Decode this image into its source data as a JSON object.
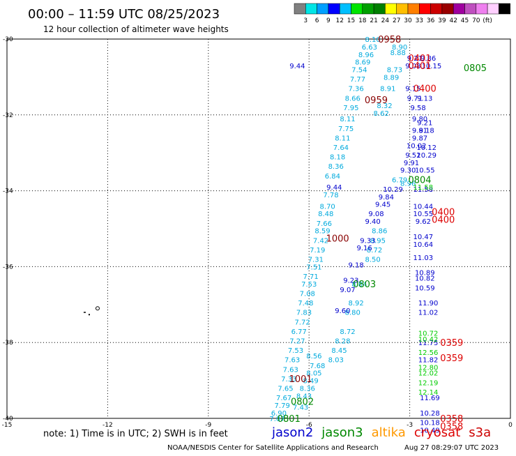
{
  "header": {
    "title": "00:00 – 11:59 UTC 08/25/2023",
    "subtitle": "12 hour collection of altimeter wave heights"
  },
  "colorbar": {
    "colors": [
      "#808080",
      "#00e5e5",
      "#009fff",
      "#0000ff",
      "#00bfff",
      "#00e500",
      "#009f00",
      "#007f00",
      "#ffff00",
      "#ffbf00",
      "#ff7f00",
      "#ff0000",
      "#cc0000",
      "#990000",
      "#9f009f",
      "#bf4fbf",
      "#ef7fef",
      "#ffcfff",
      "#000000"
    ],
    "labels": [
      "3",
      "6",
      "9",
      "12",
      "15",
      "18",
      "21",
      "24",
      "27",
      "30",
      "33",
      "36",
      "39",
      "42",
      "45",
      "70",
      "(ft)"
    ]
  },
  "footer": {
    "note": "note: 1) Time is in UTC; 2) SWH is in feet",
    "credit": "NOAA/NESDIS Center for Satellite Applications and Research",
    "timestamp": "Aug 27 08:29:07 UTC 2023"
  },
  "legend": [
    {
      "label": "jason2",
      "color": "#0000cc"
    },
    {
      "label": "jason3",
      "color": "#008800"
    },
    {
      "label": "altika",
      "color": "#ff9900"
    },
    {
      "label": "cryosat",
      "color": "#dd0000"
    },
    {
      "label": "s3a",
      "color": "#cc0000"
    }
  ],
  "chart_data": {
    "type": "scatter",
    "title": "00:00 – 11:59 UTC 08/25/2023",
    "xlim": [
      -15,
      0
    ],
    "ylim": [
      -40,
      -30
    ],
    "x_ticks": [
      -15,
      -12,
      -9,
      -6,
      -3,
      0
    ],
    "x_tick_labels": [
      "-15",
      "-12",
      "-9",
      "-6",
      "-3",
      "0"
    ],
    "y_ticks": [
      -30,
      -32,
      -34,
      -36,
      -38,
      -40
    ],
    "y_tick_labels": [
      "-30",
      "-32",
      "-34",
      "-36",
      "-38",
      "-40"
    ],
    "grid": true,
    "land": [
      {
        "x": -12.3,
        "y": -37.1
      }
    ],
    "series": [
      {
        "color": "#00aadd",
        "points": [
          {
            "x": -4.1,
            "y": -30.0,
            "label": "8.10"
          },
          {
            "x": -4.2,
            "y": -30.2,
            "label": "6.63"
          },
          {
            "x": -4.3,
            "y": -30.4,
            "label": "8.96"
          },
          {
            "x": -4.4,
            "y": -30.6,
            "label": "8.69"
          },
          {
            "x": -4.5,
            "y": -30.8,
            "label": "7.54"
          },
          {
            "x": -4.55,
            "y": -31.05,
            "label": "7.77"
          },
          {
            "x": -4.6,
            "y": -31.3,
            "label": "7.36"
          },
          {
            "x": -4.7,
            "y": -31.55,
            "label": "8.66"
          },
          {
            "x": -4.75,
            "y": -31.8,
            "label": "7.95"
          },
          {
            "x": -4.85,
            "y": -32.1,
            "label": "8.11"
          },
          {
            "x": -4.9,
            "y": -32.35,
            "label": "7.75"
          },
          {
            "x": -5.0,
            "y": -32.6,
            "label": "8.11"
          },
          {
            "x": -5.05,
            "y": -32.85,
            "label": "7.64"
          },
          {
            "x": -5.15,
            "y": -33.1,
            "label": "8.18"
          },
          {
            "x": -5.2,
            "y": -33.35,
            "label": "8.36"
          },
          {
            "x": -5.3,
            "y": -33.6,
            "label": "6.84"
          },
          {
            "x": -5.35,
            "y": -34.1,
            "label": "7.78"
          },
          {
            "x": -5.45,
            "y": -34.4,
            "label": "8.70"
          },
          {
            "x": -5.5,
            "y": -34.6,
            "label": "8.48"
          },
          {
            "x": -5.55,
            "y": -34.85,
            "label": "7.66"
          },
          {
            "x": -5.6,
            "y": -35.05,
            "label": "8.59"
          },
          {
            "x": -5.65,
            "y": -35.3,
            "label": "7.42"
          },
          {
            "x": -5.75,
            "y": -35.55,
            "label": "7.19"
          },
          {
            "x": -5.8,
            "y": -35.8,
            "label": "7.31"
          },
          {
            "x": -5.85,
            "y": -36.0,
            "label": "7.51"
          },
          {
            "x": -5.95,
            "y": -36.25,
            "label": "7.71"
          },
          {
            "x": -6.0,
            "y": -36.45,
            "label": "7.53"
          },
          {
            "x": -6.05,
            "y": -36.7,
            "label": "7.08"
          },
          {
            "x": -6.1,
            "y": -36.95,
            "label": "7.48"
          },
          {
            "x": -6.15,
            "y": -37.2,
            "label": "7.83"
          },
          {
            "x": -6.2,
            "y": -37.45,
            "label": "7.72"
          },
          {
            "x": -6.3,
            "y": -37.7,
            "label": "6.77"
          },
          {
            "x": -6.35,
            "y": -37.95,
            "label": "7.27"
          },
          {
            "x": -6.4,
            "y": -38.2,
            "label": "7.53"
          },
          {
            "x": -6.5,
            "y": -38.45,
            "label": "7.63"
          },
          {
            "x": -6.55,
            "y": -38.7,
            "label": "7.63"
          },
          {
            "x": -6.6,
            "y": -38.95,
            "label": "7.33"
          },
          {
            "x": -6.7,
            "y": -39.2,
            "label": "7.65"
          },
          {
            "x": -6.75,
            "y": -39.45,
            "label": "7.67"
          },
          {
            "x": -6.8,
            "y": -39.65,
            "label": "7.79"
          },
          {
            "x": -6.9,
            "y": -39.85,
            "label": "6.90"
          },
          {
            "x": -6.95,
            "y": -40.0,
            "label": "7.07"
          },
          {
            "x": -3.3,
            "y": -30.2,
            "label": "8.90"
          },
          {
            "x": -3.35,
            "y": -30.35,
            "label": "8.88"
          },
          {
            "x": -3.45,
            "y": -30.8,
            "label": "8.73"
          },
          {
            "x": -3.55,
            "y": -31.0,
            "label": "8.89"
          },
          {
            "x": -3.65,
            "y": -31.3,
            "label": "8.91"
          },
          {
            "x": -3.75,
            "y": -31.75,
            "label": "8.32"
          },
          {
            "x": -3.85,
            "y": -31.95,
            "label": "8.62"
          },
          {
            "x": -5.85,
            "y": -38.35,
            "label": "8.56"
          },
          {
            "x": -5.75,
            "y": -38.6,
            "label": "7.68"
          },
          {
            "x": -5.85,
            "y": -38.8,
            "label": "8.05"
          },
          {
            "x": -5.95,
            "y": -39.0,
            "label": "8.49"
          },
          {
            "x": -6.05,
            "y": -39.2,
            "label": "8.36"
          },
          {
            "x": -6.15,
            "y": -39.4,
            "label": "8.43"
          },
          {
            "x": -6.25,
            "y": -39.7,
            "label": "7.43"
          },
          {
            "x": -4.5,
            "y": -36.45,
            "label": "8.84"
          },
          {
            "x": -4.6,
            "y": -36.95,
            "label": "8.92"
          },
          {
            "x": -4.7,
            "y": -37.2,
            "label": "8.80"
          },
          {
            "x": -4.85,
            "y": -37.7,
            "label": "8.72"
          },
          {
            "x": -5.0,
            "y": -37.95,
            "label": "8.28"
          },
          {
            "x": -5.1,
            "y": -38.2,
            "label": "8.45"
          },
          {
            "x": -5.2,
            "y": -38.45,
            "label": "8.03"
          },
          {
            "x": -4.05,
            "y": -35.55,
            "label": "8.72"
          },
          {
            "x": -4.1,
            "y": -35.8,
            "label": "8.50"
          },
          {
            "x": -3.9,
            "y": -35.05,
            "label": "8.86"
          },
          {
            "x": -3.95,
            "y": -35.3,
            "label": "8.95"
          },
          {
            "x": -3.3,
            "y": -33.7,
            "label": "6.79"
          },
          {
            "x": -3.05,
            "y": -33.8,
            "label": "8.96"
          }
        ]
      },
      {
        "color": "#0000cc",
        "points": [
          {
            "x": -2.85,
            "y": -30.5,
            "label": "9.21"
          },
          {
            "x": -2.9,
            "y": -30.7,
            "label": "9.08"
          },
          {
            "x": -2.9,
            "y": -31.3,
            "label": "9.15"
          },
          {
            "x": -2.85,
            "y": -31.55,
            "label": "9.71"
          },
          {
            "x": -2.75,
            "y": -31.8,
            "label": "9.58"
          },
          {
            "x": -2.7,
            "y": -32.1,
            "label": "9.80"
          },
          {
            "x": -2.7,
            "y": -32.4,
            "label": "9.81"
          },
          {
            "x": -2.7,
            "y": -32.6,
            "label": "9.87"
          },
          {
            "x": -2.8,
            "y": -32.8,
            "label": "10.02"
          },
          {
            "x": -2.9,
            "y": -33.05,
            "label": "9.52"
          },
          {
            "x": -2.95,
            "y": -33.25,
            "label": "9.91"
          },
          {
            "x": -3.05,
            "y": -33.45,
            "label": "9.30"
          },
          {
            "x": -3.5,
            "y": -33.95,
            "label": "10.29"
          },
          {
            "x": -3.7,
            "y": -34.15,
            "label": "9.84"
          },
          {
            "x": -3.8,
            "y": -34.35,
            "label": "9.45"
          },
          {
            "x": -4.0,
            "y": -34.6,
            "label": "9.08"
          },
          {
            "x": -4.1,
            "y": -34.8,
            "label": "9.40"
          },
          {
            "x": -4.25,
            "y": -35.3,
            "label": "9.33"
          },
          {
            "x": -4.35,
            "y": -35.5,
            "label": "9.16"
          },
          {
            "x": -4.6,
            "y": -35.95,
            "label": "9.18"
          },
          {
            "x": -4.75,
            "y": -36.35,
            "label": "9.23"
          },
          {
            "x": -4.85,
            "y": -36.6,
            "label": "9.07"
          },
          {
            "x": -5.0,
            "y": -37.15,
            "label": "9.60"
          },
          {
            "x": -6.35,
            "y": -30.7,
            "label": "9.44"
          },
          {
            "x": -5.25,
            "y": -33.9,
            "label": "9.44"
          },
          {
            "x": -2.6,
            "y": -34.4,
            "label": "10.44"
          },
          {
            "x": -2.6,
            "y": -34.6,
            "label": "10.55"
          },
          {
            "x": -2.6,
            "y": -34.8,
            "label": "9.62"
          },
          {
            "x": -2.6,
            "y": -35.2,
            "label": "10.47"
          },
          {
            "x": -2.6,
            "y": -35.4,
            "label": "10.64"
          },
          {
            "x": -2.6,
            "y": -35.75,
            "label": "11.03"
          },
          {
            "x": -2.55,
            "y": -36.15,
            "label": "10.89"
          },
          {
            "x": -2.55,
            "y": -36.3,
            "label": "10.82"
          },
          {
            "x": -2.55,
            "y": -36.55,
            "label": "10.59"
          },
          {
            "x": -2.45,
            "y": -36.95,
            "label": "11.90"
          },
          {
            "x": -2.45,
            "y": -37.2,
            "label": "11.02"
          },
          {
            "x": -2.45,
            "y": -38.0,
            "label": "11.75"
          },
          {
            "x": -2.45,
            "y": -38.45,
            "label": "11.82"
          },
          {
            "x": -2.4,
            "y": -39.45,
            "label": "11.69"
          },
          {
            "x": -2.4,
            "y": -39.85,
            "label": "10.28"
          },
          {
            "x": -2.4,
            "y": -40.1,
            "label": "10.18"
          },
          {
            "x": -2.4,
            "y": -40.3,
            "label": "10.49"
          },
          {
            "x": -2.55,
            "y": -33.45,
            "label": "10.55"
          },
          {
            "x": -2.6,
            "y": -33.95,
            "label": "11.58"
          },
          {
            "x": -2.5,
            "y": -33.05,
            "label": "10.29"
          },
          {
            "x": -2.45,
            "y": -30.5,
            "label": "9.86"
          },
          {
            "x": -2.35,
            "y": -30.7,
            "label": "10.15"
          },
          {
            "x": -2.55,
            "y": -31.55,
            "label": "9.13"
          },
          {
            "x": -2.55,
            "y": -32.2,
            "label": "9.21"
          },
          {
            "x": -2.5,
            "y": -32.4,
            "label": "9.18"
          },
          {
            "x": -2.5,
            "y": -32.85,
            "label": "10.12"
          }
        ]
      },
      {
        "color": "#00cc00",
        "points": [
          {
            "x": -2.6,
            "y": -33.9,
            "label": "11.58"
          },
          {
            "x": -2.45,
            "y": -37.75,
            "label": "10.72"
          },
          {
            "x": -2.45,
            "y": -37.9,
            "label": "10.42"
          },
          {
            "x": -2.45,
            "y": -38.25,
            "label": "12.56"
          },
          {
            "x": -2.45,
            "y": -38.65,
            "label": "12.80"
          },
          {
            "x": -2.45,
            "y": -38.8,
            "label": "12.02"
          },
          {
            "x": -2.45,
            "y": -39.05,
            "label": "12.19"
          },
          {
            "x": -2.45,
            "y": -39.3,
            "label": "12.14"
          }
        ]
      }
    ],
    "time_labels": [
      {
        "x": -3.6,
        "y": -30.0,
        "label": "0958",
        "color": "#880000"
      },
      {
        "x": -2.7,
        "y": -30.5,
        "label": "0401",
        "color": "#dd0000"
      },
      {
        "x": -2.7,
        "y": -30.7,
        "label": "0401",
        "color": "#dd0000"
      },
      {
        "x": -1.05,
        "y": -30.75,
        "label": "0805",
        "color": "#008800"
      },
      {
        "x": -2.55,
        "y": -31.3,
        "label": "0400",
        "color": "#dd0000"
      },
      {
        "x": -4.0,
        "y": -31.6,
        "label": "0959",
        "color": "#880000"
      },
      {
        "x": -2.7,
        "y": -33.7,
        "label": "0804",
        "color": "#008800"
      },
      {
        "x": -2.0,
        "y": -34.55,
        "label": "0400",
        "color": "#dd0000"
      },
      {
        "x": -2.0,
        "y": -34.75,
        "label": "0400",
        "color": "#dd0000"
      },
      {
        "x": -5.15,
        "y": -35.25,
        "label": "1000",
        "color": "#880000"
      },
      {
        "x": -4.35,
        "y": -36.45,
        "label": "0803",
        "color": "#008800"
      },
      {
        "x": -1.75,
        "y": -38.0,
        "label": "0359",
        "color": "#dd0000"
      },
      {
        "x": -1.75,
        "y": -38.4,
        "label": "0359",
        "color": "#dd0000"
      },
      {
        "x": -6.25,
        "y": -38.95,
        "label": "1001",
        "color": "#880000"
      },
      {
        "x": -6.2,
        "y": -39.55,
        "label": "0802",
        "color": "#008800"
      },
      {
        "x": -1.75,
        "y": -40.0,
        "label": "0358",
        "color": "#dd0000"
      },
      {
        "x": -1.75,
        "y": -40.2,
        "label": "0358",
        "color": "#dd0000"
      },
      {
        "x": -6.6,
        "y": -40.0,
        "label": "0801",
        "color": "#008800"
      }
    ]
  }
}
